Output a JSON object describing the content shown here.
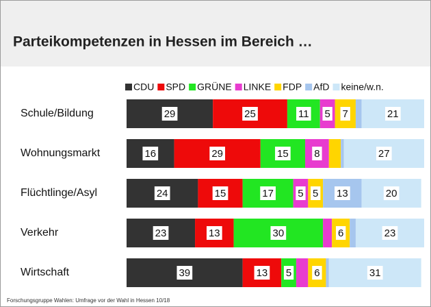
{
  "chart_data": {
    "type": "stacked_barh",
    "title": "Parteikompetenzen in Hessen im Bereich …",
    "source": "Forschungsgruppe Wahlen: Umfrage vor der Wahl in Hessen 10/18",
    "categories": [
      "Schule/Bildung",
      "Wohnungsmarkt",
      "Flüchtlinge/Asyl",
      "Verkehr",
      "Wirtschaft"
    ],
    "xlim": [
      0,
      100
    ],
    "series": [
      {
        "name": "CDU",
        "color": "#333333",
        "values": [
          29,
          16,
          24,
          23,
          39
        ]
      },
      {
        "name": "SPD",
        "color": "#ee0a0a",
        "values": [
          25,
          29,
          15,
          13,
          13
        ]
      },
      {
        "name": "GRÜNE",
        "color": "#22e622",
        "values": [
          11,
          15,
          17,
          30,
          5
        ]
      },
      {
        "name": "LINKE",
        "color": "#e83ccf",
        "values": [
          5,
          8,
          5,
          3,
          4
        ]
      },
      {
        "name": "FDP",
        "color": "#ffd500",
        "values": [
          7,
          4,
          5,
          6,
          6
        ]
      },
      {
        "name": "AfD",
        "color": "#a6c6ee",
        "values": [
          2,
          1,
          13,
          2,
          1
        ]
      },
      {
        "name": "keine/w.n.",
        "color": "#cde7f8",
        "values": [
          21,
          27,
          20,
          23,
          31
        ]
      }
    ]
  }
}
